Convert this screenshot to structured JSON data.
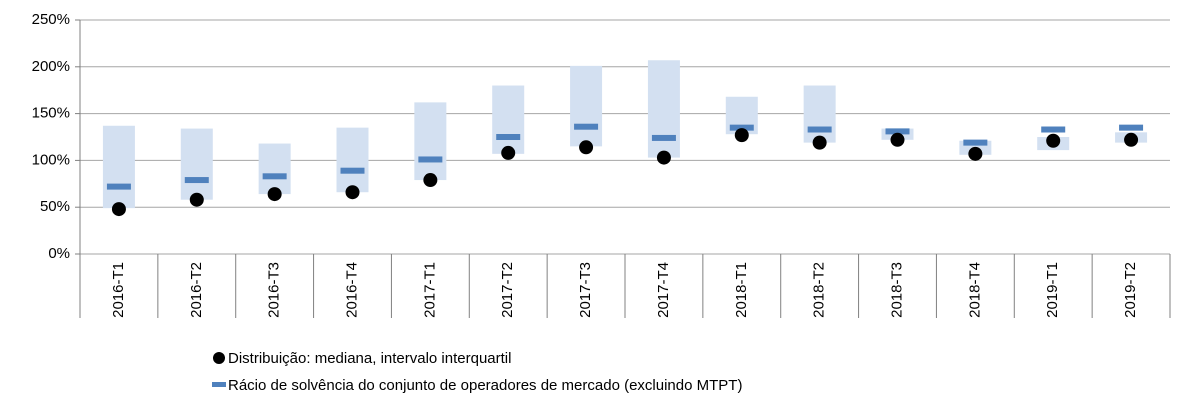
{
  "chart_data": {
    "type": "box",
    "categories": [
      "2016-T1",
      "2016-T2",
      "2016-T3",
      "2016-T4",
      "2017-T1",
      "2017-T2",
      "2017-T3",
      "2017-T4",
      "2018-T1",
      "2018-T2",
      "2018-T3",
      "2018-T4",
      "2019-T1",
      "2019-T2"
    ],
    "series": [
      {
        "name": "Distribuição: mediana, intervalo interquartil",
        "color": "#000000",
        "box_color": "#d3e0f1",
        "values": [
          48,
          58,
          64,
          66,
          79,
          108,
          114,
          103,
          127,
          119,
          122,
          107,
          121,
          122
        ],
        "low": [
          49,
          58,
          64,
          66,
          79,
          107,
          115,
          103,
          128,
          119,
          122,
          106,
          111,
          119
        ],
        "high": [
          137,
          134,
          118,
          135,
          162,
          180,
          201,
          207,
          168,
          180,
          134,
          121,
          125,
          130
        ]
      },
      {
        "name": "Rácio de solvência do conjunto de operadores de mercado (excluindo MTPT)",
        "color": "#4f81bd",
        "values": [
          72,
          79,
          83,
          89,
          101,
          125,
          136,
          124,
          135,
          133,
          131,
          119,
          133,
          135
        ]
      }
    ],
    "ylim": [
      0,
      250
    ],
    "yticks": [
      {
        "value": 0,
        "label": "0%"
      },
      {
        "value": 50,
        "label": "50%"
      },
      {
        "value": 100,
        "label": "100%"
      },
      {
        "value": 150,
        "label": "150%"
      },
      {
        "value": 200,
        "label": "200%"
      },
      {
        "value": 250,
        "label": "250%"
      }
    ],
    "grid": true
  }
}
